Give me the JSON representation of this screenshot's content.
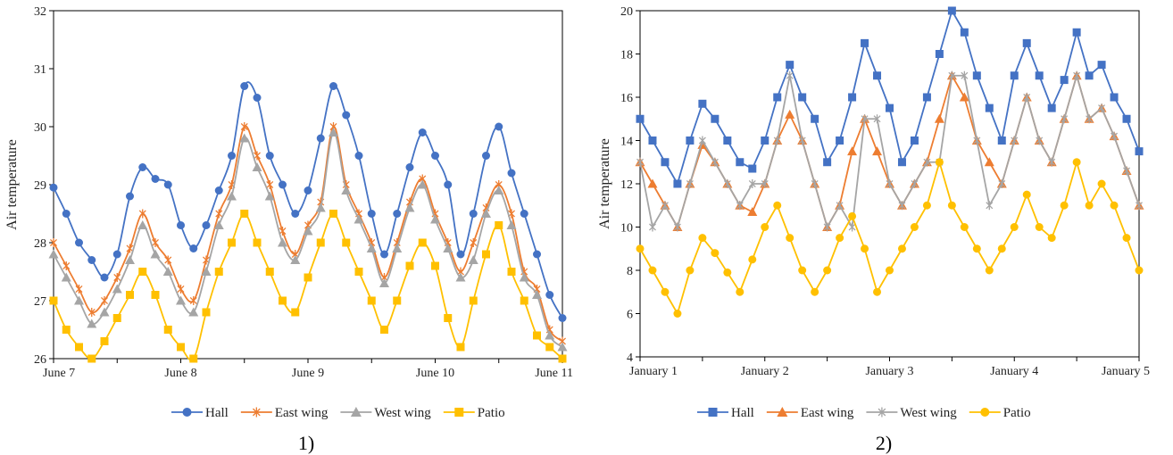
{
  "panels": [
    {
      "label": "1)"
    },
    {
      "label": "2)"
    }
  ],
  "chart_data": [
    {
      "type": "line",
      "ylabel": "Air temperature",
      "xlabel": "",
      "ylim": [
        26,
        32
      ],
      "yticks": [
        26,
        27,
        28,
        29,
        30,
        31,
        32
      ],
      "xlim": [
        0,
        96
      ],
      "xticks": [
        {
          "label": "June 7",
          "x": 0
        },
        {
          "label": "June 8",
          "x": 24
        },
        {
          "label": "June 9",
          "x": 48
        },
        {
          "label": "June 10",
          "x": 72
        },
        {
          "label": "June 11",
          "x": 96
        }
      ],
      "x": [
        0,
        2.4,
        4.8,
        7.2,
        9.6,
        12,
        14.4,
        16.8,
        19.2,
        21.6,
        24,
        26.4,
        28.8,
        31.2,
        33.6,
        36,
        38.4,
        40.8,
        43.2,
        45.6,
        48,
        50.4,
        52.8,
        55.2,
        57.6,
        60,
        62.4,
        64.8,
        67.2,
        69.6,
        72,
        74.4,
        76.8,
        79.2,
        81.6,
        84,
        86.4,
        88.8,
        91.2,
        93.6,
        96
      ],
      "smooth": true,
      "grid": false,
      "legend_position": "bottom",
      "series": [
        {
          "name": "Hall",
          "color": "#4472C4",
          "marker": "circle",
          "values": [
            28.95,
            28.5,
            28.0,
            27.7,
            27.4,
            27.8,
            28.8,
            29.3,
            29.1,
            29.0,
            28.3,
            27.9,
            28.3,
            28.9,
            29.5,
            30.7,
            30.5,
            29.5,
            29.0,
            28.5,
            28.9,
            29.8,
            30.7,
            30.2,
            29.5,
            28.5,
            27.8,
            28.5,
            29.3,
            29.9,
            29.5,
            29.0,
            27.8,
            28.5,
            29.5,
            30.0,
            29.2,
            28.5,
            27.8,
            27.1,
            26.7
          ]
        },
        {
          "name": "East wing",
          "color": "#ED7D31",
          "marker": "star",
          "values": [
            28.0,
            27.6,
            27.2,
            26.8,
            27.0,
            27.4,
            27.9,
            28.5,
            28.0,
            27.7,
            27.2,
            27.0,
            27.7,
            28.5,
            29.0,
            30.0,
            29.5,
            29.0,
            28.2,
            27.8,
            28.3,
            28.7,
            30.0,
            29.0,
            28.5,
            28.0,
            27.4,
            28.0,
            28.7,
            29.1,
            28.5,
            28.0,
            27.5,
            28.0,
            28.6,
            29.0,
            28.5,
            27.5,
            27.2,
            26.5,
            26.3
          ]
        },
        {
          "name": "West wing",
          "color": "#A5A5A5",
          "marker": "triangle",
          "values": [
            27.8,
            27.4,
            27.0,
            26.6,
            26.8,
            27.2,
            27.7,
            28.3,
            27.8,
            27.5,
            27.0,
            26.8,
            27.5,
            28.3,
            28.8,
            29.8,
            29.3,
            28.8,
            28.0,
            27.7,
            28.2,
            28.6,
            29.9,
            28.9,
            28.4,
            27.9,
            27.3,
            27.9,
            28.6,
            29.0,
            28.4,
            27.9,
            27.4,
            27.7,
            28.5,
            28.9,
            28.3,
            27.4,
            27.1,
            26.4,
            26.2
          ]
        },
        {
          "name": "Patio",
          "color": "#FFC000",
          "marker": "square",
          "values": [
            27.0,
            26.5,
            26.2,
            26.0,
            26.3,
            26.7,
            27.1,
            27.5,
            27.1,
            26.5,
            26.2,
            26.0,
            26.8,
            27.5,
            28.0,
            28.5,
            28.0,
            27.5,
            27.0,
            26.8,
            27.4,
            28.0,
            28.5,
            28.0,
            27.5,
            27.0,
            26.5,
            27.0,
            27.6,
            28.0,
            27.6,
            26.7,
            26.2,
            27.0,
            27.8,
            28.3,
            27.5,
            27.0,
            26.4,
            26.2,
            26.0
          ]
        }
      ]
    },
    {
      "type": "line",
      "ylabel": "Air temperature",
      "xlabel": "",
      "ylim": [
        4,
        20
      ],
      "yticks": [
        4,
        6,
        8,
        10,
        12,
        14,
        16,
        18,
        20
      ],
      "xlim": [
        0,
        96
      ],
      "xticks": [
        {
          "label": "January 1",
          "x": 0
        },
        {
          "label": "January 2",
          "x": 24
        },
        {
          "label": "January 3",
          "x": 48
        },
        {
          "label": "January 4",
          "x": 72
        },
        {
          "label": "January 5",
          "x": 96
        }
      ],
      "x": [
        0,
        2.4,
        4.8,
        7.2,
        9.6,
        12,
        14.4,
        16.8,
        19.2,
        21.6,
        24,
        26.4,
        28.8,
        31.2,
        33.6,
        36,
        38.4,
        40.8,
        43.2,
        45.6,
        48,
        50.4,
        52.8,
        55.2,
        57.6,
        60,
        62.4,
        64.8,
        67.2,
        69.6,
        72,
        74.4,
        76.8,
        79.2,
        81.6,
        84,
        86.4,
        88.8,
        91.2,
        93.6,
        96
      ],
      "smooth": false,
      "grid": false,
      "legend_position": "bottom",
      "series": [
        {
          "name": "Hall",
          "color": "#4472C4",
          "marker": "square",
          "values": [
            15.0,
            14.0,
            13.0,
            12.0,
            14.0,
            15.7,
            15.0,
            14.0,
            13.0,
            12.7,
            14.0,
            16.0,
            17.5,
            16.0,
            15.0,
            13.0,
            14.0,
            16.0,
            18.5,
            17.0,
            15.5,
            13.0,
            14.0,
            16.0,
            18.0,
            20.0,
            19.0,
            17.0,
            15.5,
            14.0,
            17.0,
            18.5,
            17.0,
            15.5,
            16.8,
            19.0,
            17.0,
            17.5,
            16.0,
            15.0,
            13.5
          ]
        },
        {
          "name": "East wing",
          "color": "#ED7D31",
          "marker": "triangle",
          "values": [
            13.0,
            12.0,
            11.0,
            10.0,
            12.0,
            13.8,
            13.0,
            12.0,
            11.0,
            10.7,
            12.0,
            14.0,
            15.2,
            14.0,
            12.0,
            10.0,
            11.0,
            13.5,
            15.0,
            13.5,
            12.0,
            11.0,
            12.0,
            13.0,
            15.0,
            17.0,
            16.0,
            14.0,
            13.0,
            12.0,
            14.0,
            16.0,
            14.0,
            13.0,
            15.0,
            17.0,
            15.0,
            15.5,
            14.2,
            12.6,
            11.0
          ]
        },
        {
          "name": "West wing",
          "color": "#A5A5A5",
          "marker": "asterisk",
          "values": [
            13.0,
            10.0,
            11.0,
            10.0,
            12.0,
            14.0,
            13.0,
            12.0,
            11.0,
            12.0,
            12.0,
            14.0,
            17.0,
            14.0,
            12.0,
            10.0,
            11.0,
            10.0,
            15.0,
            15.0,
            12.0,
            11.0,
            12.0,
            13.0,
            13.0,
            17.0,
            17.0,
            14.0,
            11.0,
            12.0,
            14.0,
            16.0,
            14.0,
            13.0,
            15.0,
            17.0,
            15.0,
            15.5,
            14.2,
            12.6,
            11.0
          ]
        },
        {
          "name": "Patio",
          "color": "#FFC000",
          "marker": "circle",
          "values": [
            9.0,
            8.0,
            7.0,
            6.0,
            8.0,
            9.5,
            8.8,
            7.9,
            7.0,
            8.5,
            10.0,
            11.0,
            9.5,
            8.0,
            7.0,
            8.0,
            9.5,
            10.5,
            9.0,
            7.0,
            8.0,
            9.0,
            10.0,
            11.0,
            13.0,
            11.0,
            10.0,
            9.0,
            8.0,
            9.0,
            10.0,
            11.5,
            10.0,
            9.5,
            11.0,
            13.0,
            11.0,
            12.0,
            11.0,
            9.5,
            8.0
          ]
        }
      ]
    }
  ]
}
